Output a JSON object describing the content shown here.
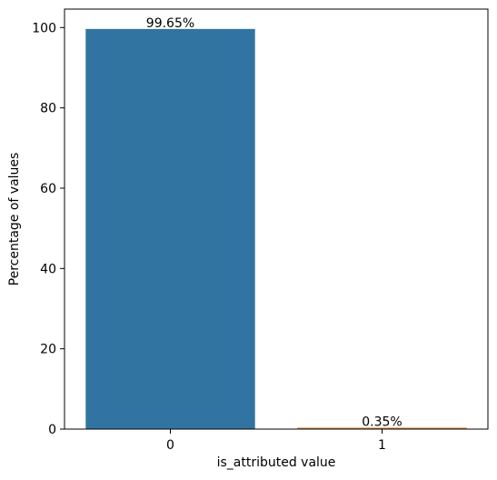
{
  "chart_data": {
    "type": "bar",
    "categories": [
      "0",
      "1"
    ],
    "values": [
      99.65,
      0.35
    ],
    "data_labels": [
      "99.65%",
      "0.35%"
    ],
    "bar_colors": [
      "#3274a1",
      "#e1812c"
    ],
    "title": "",
    "xlabel": "is_attributed value",
    "ylabel": "Percentage of values",
    "ylim": [
      0,
      104.6
    ],
    "y_ticks": [
      0,
      20,
      40,
      60,
      80,
      100
    ],
    "grid": false,
    "legend": "none"
  }
}
